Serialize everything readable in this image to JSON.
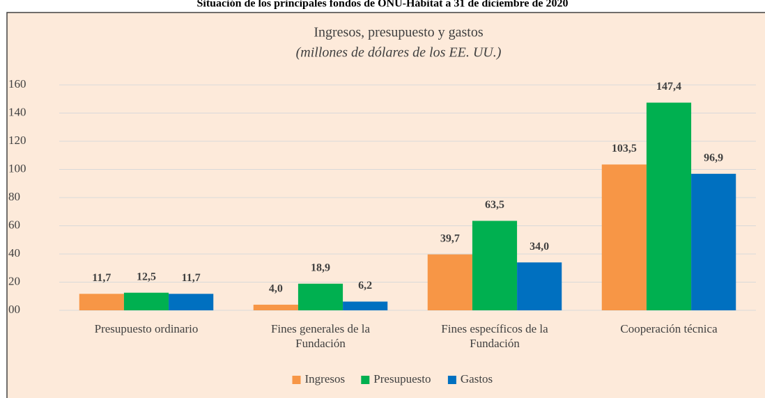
{
  "chart_data": {
    "type": "bar",
    "figure_title": "Situación de los principales fondos de ONU-Hábitat a 31 de diciembre de 2020",
    "title": "Ingresos, presupuesto y gastos",
    "subtitle": "(millones de dólares de los EE. UU.)",
    "categories": [
      "Presupuesto ordinario",
      "Fines generales de la Fundación",
      "Fines específicos de la Fundación",
      "Cooperación técnica"
    ],
    "series": [
      {
        "name": "Ingresos",
        "color": "#f79646",
        "values": [
          11.7,
          4.0,
          39.7,
          103.5
        ],
        "value_labels": [
          "11,7",
          "4,0",
          "39,7",
          "103,5"
        ]
      },
      {
        "name": "Presupuesto",
        "color": "#00b050",
        "values": [
          12.5,
          18.9,
          63.5,
          147.4
        ],
        "value_labels": [
          "12,5",
          "18,9",
          "63,5",
          "147,4"
        ]
      },
      {
        "name": "Gastos",
        "color": "#0070c0",
        "values": [
          11.7,
          6.2,
          34.0,
          96.9
        ],
        "value_labels": [
          "11,7",
          "6,2",
          "34,0",
          "96,9"
        ]
      }
    ],
    "ylim": [
      0,
      160
    ],
    "yticks": [
      {
        "value": 0,
        "label": "00"
      },
      20,
      40,
      60,
      80,
      100,
      120,
      140,
      160
    ],
    "grid": true,
    "legend": "bottom"
  }
}
